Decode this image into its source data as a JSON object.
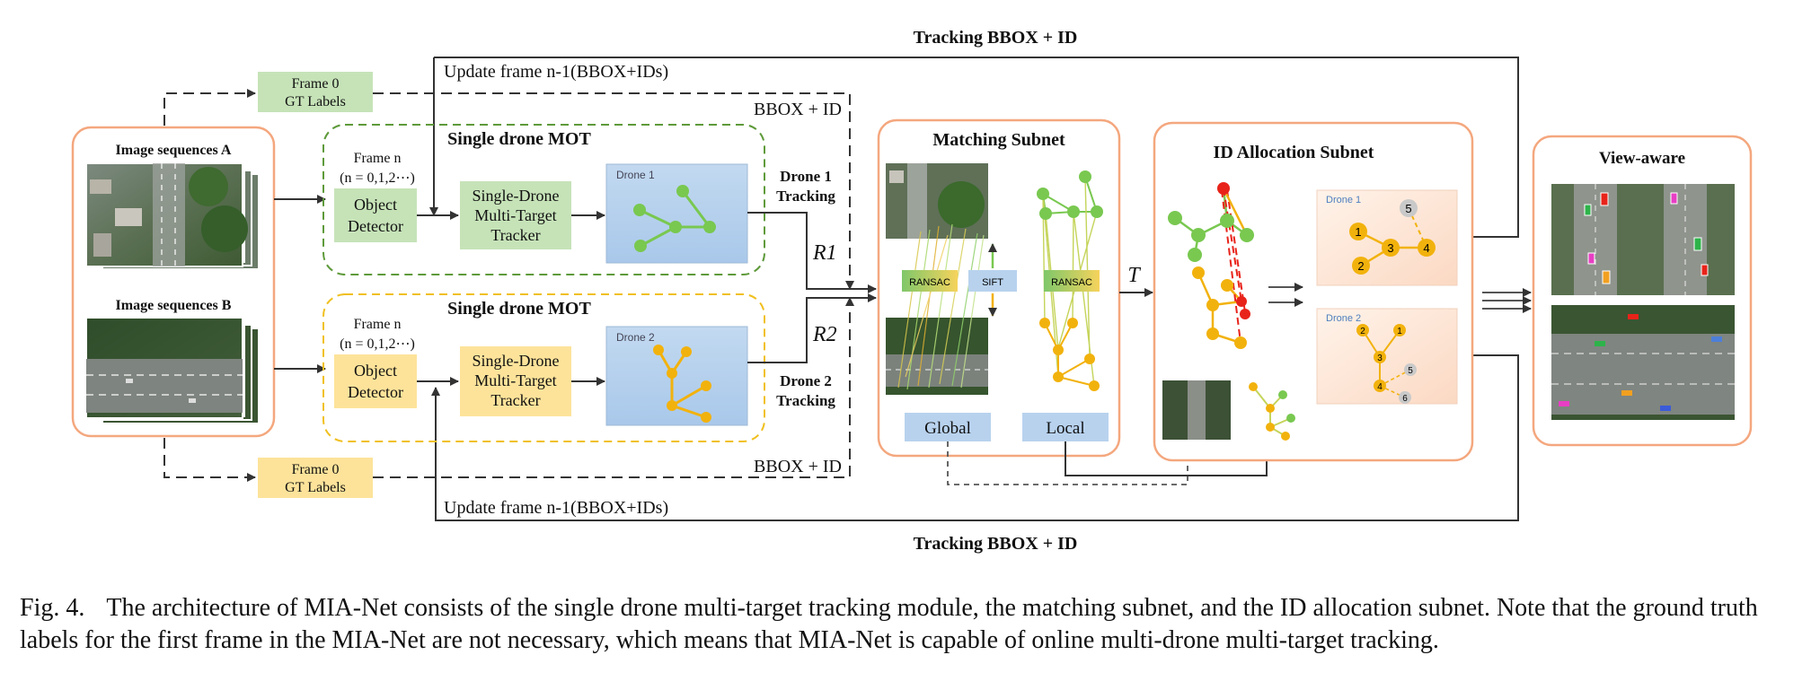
{
  "top_label": "Tracking BBOX + ID",
  "bottom_label": "Tracking BBOX + ID",
  "update_top": "Update frame n-1(BBOX+IDs)",
  "update_bottom": "Update frame n-1(BBOX+IDs)",
  "bbox_id_top": "BBOX + ID",
  "bbox_id_bottom": "BBOX + ID",
  "gt_top": {
    "line1": "Frame 0",
    "line2": "GT Labels"
  },
  "gt_bottom": {
    "line1": "Frame 0",
    "line2": "GT Labels"
  },
  "seq_a": "Image sequences A",
  "seq_b": "Image sequences B",
  "mot_top": {
    "title": "Single drone MOT",
    "frame_line1": "Frame n",
    "frame_line2": "(n = 0,1,2⋯)",
    "detector_line1": "Object",
    "detector_line2": "Detector",
    "tracker_line1": "Single-Drone",
    "tracker_line2": "Multi-Target",
    "tracker_line3": "Tracker",
    "drone_label": "Drone 1",
    "out_line1": "Drone 1",
    "out_line2": "Tracking",
    "r_label": "R1"
  },
  "mot_bottom": {
    "title": "Single drone MOT",
    "frame_line1": "Frame n",
    "frame_line2": "(n = 0,1,2⋯)",
    "detector_line1": "Object",
    "detector_line2": "Detector",
    "tracker_line1": "Single-Drone",
    "tracker_line2": "Multi-Target",
    "tracker_line3": "Tracker",
    "drone_label": "Drone 2",
    "out_line1": "Drone 2",
    "out_line2": "Tracking",
    "r_label": "R2"
  },
  "matching": {
    "title": "Matching Subnet",
    "ransac_left": "RANSAC",
    "sift": "SIFT",
    "ransac_right": "RANSAC",
    "global": "Global",
    "local": "Local"
  },
  "t_label": "T",
  "id_alloc": {
    "title": "ID  Allocation Subnet",
    "drone1": "Drone 1",
    "drone2": "Drone 2",
    "d1_nodes": [
      "1",
      "2",
      "3",
      "4",
      "5"
    ],
    "d2_nodes": [
      "1",
      "2",
      "3",
      "4",
      "5",
      "6"
    ]
  },
  "view_aware": "View-aware",
  "caption": {
    "fig": "Fig. 4.",
    "text": "The architecture of MIA-Net consists of the single drone multi-target tracking module, the matching subnet, and the ID allocation subnet. Note that the ground truth labels for the first frame in the MIA-Net are not necessary, which means that MIA-Net is capable of online multi-drone multi-target tracking."
  },
  "colors": {
    "orange_border": "#f4a77e",
    "green_fill": "#c6e3b8",
    "yellow_fill": "#fde39a",
    "blue_fill": "#b8d2ee",
    "green_node": "#79c850",
    "yellow_node": "#f2b20d",
    "red_node": "#e8231a"
  }
}
